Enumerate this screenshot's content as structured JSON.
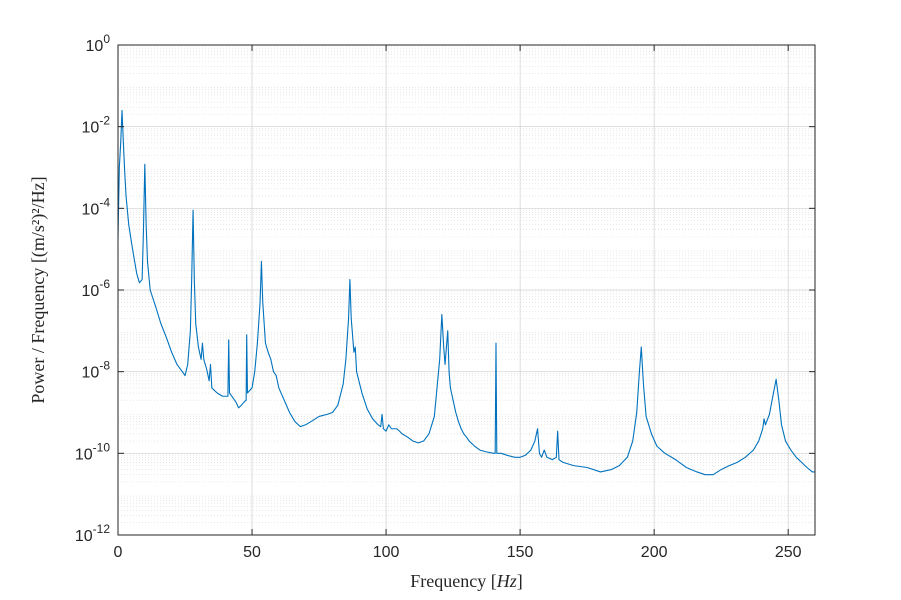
{
  "chart_data": {
    "type": "line",
    "xlabel": "Frequency [Hz]",
    "ylabel": "Power / Frequency [(m/s²)²/Hz]",
    "xlim": [
      0,
      260
    ],
    "ylim": [
      1e-12,
      1
    ],
    "y_scale": "log",
    "grid": true,
    "minor_grid": true,
    "color": "#0072BD",
    "x_ticks": [
      {
        "value": 0,
        "label": "0"
      },
      {
        "value": 50,
        "label": "50"
      },
      {
        "value": 100,
        "label": "100"
      },
      {
        "value": 150,
        "label": "150"
      },
      {
        "value": 200,
        "label": "200"
      },
      {
        "value": 250,
        "label": "250"
      }
    ],
    "y_ticks": [
      {
        "value": 1e-12,
        "base": "10",
        "exp": "-12"
      },
      {
        "value": 1e-10,
        "base": "10",
        "exp": "-10"
      },
      {
        "value": 1e-08,
        "base": "10",
        "exp": "-8"
      },
      {
        "value": 1e-06,
        "base": "10",
        "exp": "-6"
      },
      {
        "value": 0.0001,
        "base": "10",
        "exp": "-4"
      },
      {
        "value": 0.01,
        "base": "10",
        "exp": "-2"
      },
      {
        "value": 1,
        "base": "10",
        "exp": "0"
      }
    ],
    "series": [
      {
        "points": [
          [
            0,
            2e-05
          ],
          [
            0.5,
            0.001
          ],
          [
            1,
            0.004
          ],
          [
            1.5,
            0.025
          ],
          [
            2,
            0.004
          ],
          [
            2.5,
            0.0008
          ],
          [
            3,
            0.0002
          ],
          [
            4,
            4e-05
          ],
          [
            5,
            1.5e-05
          ],
          [
            6,
            6e-06
          ],
          [
            7,
            2.5e-06
          ],
          [
            8,
            1.5e-06
          ],
          [
            9,
            1.8e-06
          ],
          [
            9.5,
            3e-05
          ],
          [
            10,
            0.0012
          ],
          [
            10.5,
            4e-05
          ],
          [
            11,
            5e-06
          ],
          [
            12,
            1e-06
          ],
          [
            14,
            4e-07
          ],
          [
            16,
            1.5e-07
          ],
          [
            18,
            7e-08
          ],
          [
            20,
            3e-08
          ],
          [
            22,
            1.5e-08
          ],
          [
            24,
            1e-08
          ],
          [
            25,
            8e-09
          ],
          [
            26,
            1.5e-08
          ],
          [
            27,
            1e-07
          ],
          [
            27.5,
            2e-06
          ],
          [
            28,
            9e-05
          ],
          [
            28.5,
            1.5e-06
          ],
          [
            29,
            1.5e-07
          ],
          [
            30,
            4e-08
          ],
          [
            31,
            2e-08
          ],
          [
            31.5,
            5e-08
          ],
          [
            32,
            2e-08
          ],
          [
            33,
            1.2e-08
          ],
          [
            34,
            6e-09
          ],
          [
            34.5,
            1.5e-08
          ],
          [
            35,
            4e-09
          ],
          [
            37,
            3e-09
          ],
          [
            39,
            2.5e-09
          ],
          [
            40,
            2.5e-09
          ],
          [
            41,
            2.5e-09
          ],
          [
            41.3,
            6e-08
          ],
          [
            41.6,
            3e-09
          ],
          [
            44,
            1.8e-09
          ],
          [
            45,
            1.3e-09
          ],
          [
            46,
            1.5e-09
          ],
          [
            47,
            1.8e-09
          ],
          [
            47.8,
            2e-09
          ],
          [
            48,
            8e-08
          ],
          [
            48.3,
            3e-09
          ],
          [
            50,
            4e-09
          ],
          [
            51,
            1e-08
          ],
          [
            52,
            5e-08
          ],
          [
            53,
            5e-07
          ],
          [
            53.5,
            5e-06
          ],
          [
            54,
            5e-07
          ],
          [
            55,
            5e-08
          ],
          [
            56,
            3e-08
          ],
          [
            57,
            2e-08
          ],
          [
            58,
            1e-08
          ],
          [
            59,
            8e-09
          ],
          [
            60,
            4e-09
          ],
          [
            62,
            2e-09
          ],
          [
            64,
            1e-09
          ],
          [
            66,
            6e-10
          ],
          [
            68,
            4.5e-10
          ],
          [
            70,
            5e-10
          ],
          [
            72,
            6e-10
          ],
          [
            75,
            8e-10
          ],
          [
            78,
            9e-10
          ],
          [
            80,
            1e-09
          ],
          [
            82,
            1.5e-09
          ],
          [
            84,
            5e-09
          ],
          [
            85,
            2e-08
          ],
          [
            86,
            2e-07
          ],
          [
            86.5,
            1.8e-06
          ],
          [
            87,
            2e-07
          ],
          [
            88,
            3e-08
          ],
          [
            88.5,
            4e-08
          ],
          [
            89,
            1e-08
          ],
          [
            91,
            3e-09
          ],
          [
            93,
            1.2e-09
          ],
          [
            95,
            7e-10
          ],
          [
            97,
            5e-10
          ],
          [
            98,
            4.5e-10
          ],
          [
            98.5,
            9e-10
          ],
          [
            99,
            4e-10
          ],
          [
            100,
            3.5e-10
          ],
          [
            101,
            5e-10
          ],
          [
            102,
            4e-10
          ],
          [
            104,
            4e-10
          ],
          [
            105,
            3.5e-10
          ],
          [
            106,
            3e-10
          ],
          [
            108,
            2.5e-10
          ],
          [
            110,
            2e-10
          ],
          [
            112,
            1.8e-10
          ],
          [
            114,
            2e-10
          ],
          [
            116,
            3e-10
          ],
          [
            118,
            8e-10
          ],
          [
            119,
            4e-09
          ],
          [
            120,
            2e-08
          ],
          [
            120.8,
            2.5e-07
          ],
          [
            121.5,
            4e-08
          ],
          [
            122,
            1.5e-08
          ],
          [
            123,
            1e-07
          ],
          [
            123.5,
            1e-08
          ],
          [
            124,
            4e-09
          ],
          [
            125,
            2e-09
          ],
          [
            126,
            1e-09
          ],
          [
            127,
            6e-10
          ],
          [
            128,
            4e-10
          ],
          [
            129,
            3e-10
          ],
          [
            130,
            2.5e-10
          ],
          [
            131,
            2e-10
          ],
          [
            133,
            1.5e-10
          ],
          [
            135,
            1.2e-10
          ],
          [
            137,
            1.1e-10
          ],
          [
            140,
            1e-10
          ],
          [
            140.7,
            1e-10
          ],
          [
            141,
            5e-08
          ],
          [
            141.3,
            1e-10
          ],
          [
            143,
            1e-10
          ],
          [
            145,
            9e-11
          ],
          [
            148,
            8e-11
          ],
          [
            150,
            8e-11
          ],
          [
            152,
            9e-11
          ],
          [
            154,
            1.2e-10
          ],
          [
            155.5,
            2e-10
          ],
          [
            156.5,
            4e-10
          ],
          [
            157.2,
            1e-10
          ],
          [
            158,
            8e-11
          ],
          [
            159,
            1.2e-10
          ],
          [
            160,
            8e-11
          ],
          [
            162,
            7e-11
          ],
          [
            163.5,
            8e-11
          ],
          [
            164,
            3.5e-10
          ],
          [
            164.5,
            7e-11
          ],
          [
            166,
            6e-11
          ],
          [
            170,
            5e-11
          ],
          [
            175,
            4.5e-11
          ],
          [
            180,
            3.5e-11
          ],
          [
            184,
            4e-11
          ],
          [
            187,
            5e-11
          ],
          [
            190,
            8e-11
          ],
          [
            192,
            2e-10
          ],
          [
            193.5,
            1e-09
          ],
          [
            194.5,
            1e-08
          ],
          [
            195.2,
            4e-08
          ],
          [
            196,
            5e-09
          ],
          [
            197,
            8e-10
          ],
          [
            199,
            3e-10
          ],
          [
            201,
            1.5e-10
          ],
          [
            204,
            1e-10
          ],
          [
            208,
            7e-11
          ],
          [
            212,
            4.5e-11
          ],
          [
            216,
            3.5e-11
          ],
          [
            219,
            3e-11
          ],
          [
            222,
            3e-11
          ],
          [
            225,
            4e-11
          ],
          [
            228,
            5e-11
          ],
          [
            231,
            6e-11
          ],
          [
            234,
            8e-11
          ],
          [
            237,
            1.2e-10
          ],
          [
            239,
            2e-10
          ],
          [
            240.5,
            4e-10
          ],
          [
            241,
            7e-10
          ],
          [
            241.5,
            5e-10
          ],
          [
            243,
            9e-10
          ],
          [
            244.5,
            3e-09
          ],
          [
            245.5,
            6.5e-09
          ],
          [
            246.5,
            2e-09
          ],
          [
            247.5,
            5e-10
          ],
          [
            249,
            2e-10
          ],
          [
            251,
            1.2e-10
          ],
          [
            253,
            8e-11
          ],
          [
            255,
            6e-11
          ],
          [
            257,
            4.5e-11
          ],
          [
            259,
            3.5e-11
          ],
          [
            260,
            3.5e-11
          ]
        ]
      }
    ]
  }
}
